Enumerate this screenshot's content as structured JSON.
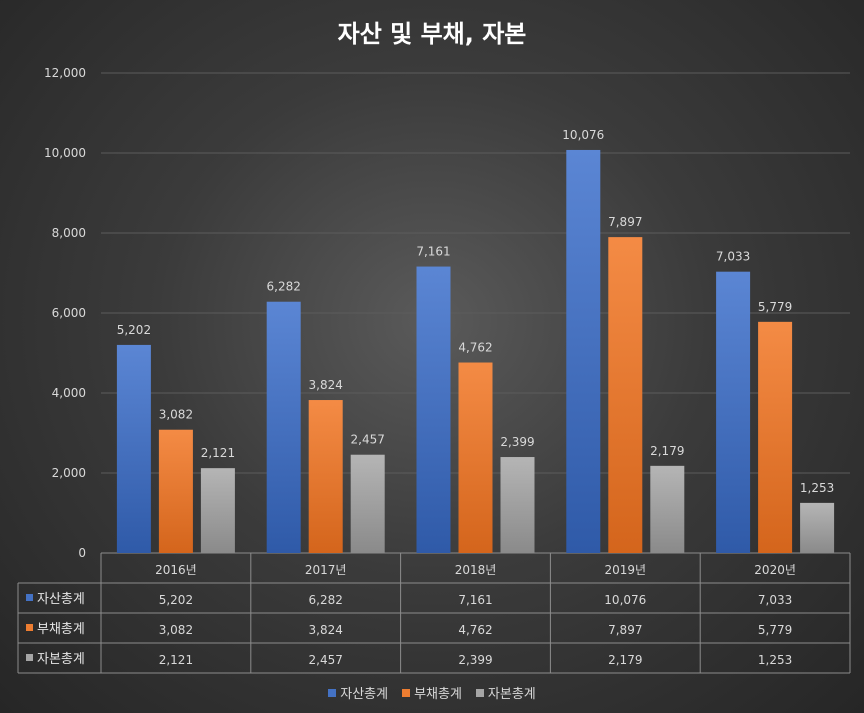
{
  "chart_data": {
    "type": "bar",
    "title": "자산 및 부채, 자본",
    "categories": [
      "2016년",
      "2017년",
      "2018년",
      "2019년",
      "2020년"
    ],
    "series": [
      {
        "name": "자산총계",
        "color": "#4472C4",
        "values": [
          5202,
          6282,
          7161,
          10076,
          7033
        ]
      },
      {
        "name": "부채총계",
        "color": "#ED7D31",
        "values": [
          3082,
          3824,
          4762,
          7897,
          5779
        ]
      },
      {
        "name": "자본총계",
        "color": "#A5A5A5",
        "values": [
          2121,
          2457,
          2399,
          2179,
          1253
        ]
      }
    ],
    "ylim": [
      0,
      12000
    ],
    "yticks": [
      0,
      2000,
      4000,
      6000,
      8000,
      10000,
      12000
    ],
    "ytick_labels": [
      "0",
      "2,000",
      "4,000",
      "6,000",
      "8,000",
      "10,000",
      "12,000"
    ],
    "value_labels": [
      [
        "5,202",
        "6,282",
        "7,161",
        "10,076",
        "7,033"
      ],
      [
        "3,082",
        "3,824",
        "4,762",
        "7,897",
        "5,779"
      ],
      [
        "2,121",
        "2,457",
        "2,399",
        "2,179",
        "1,253"
      ]
    ],
    "grid": true,
    "data_table": true,
    "legend_position": "bottom"
  }
}
